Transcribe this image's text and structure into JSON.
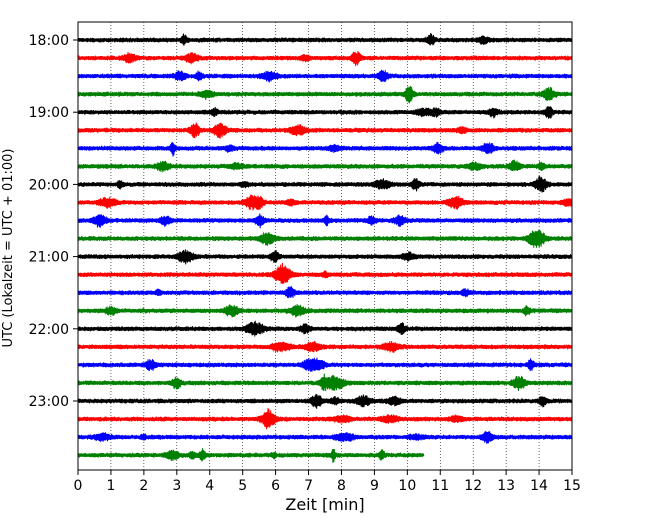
{
  "chart_data": {
    "type": "line",
    "title": "",
    "xlabel": "Zeit  [min]",
    "ylabel": "UTC (Lokalzeit = UTC + 01:00)",
    "xlim": [
      0,
      15
    ],
    "x_ticks": [
      "0",
      "1",
      "2",
      "3",
      "4",
      "5",
      "6",
      "7",
      "8",
      "9",
      "10",
      "11",
      "12",
      "13",
      "14",
      "15"
    ],
    "y_tick_labels": [
      "18:00",
      "19:00",
      "20:00",
      "21:00",
      "22:00",
      "23:00"
    ],
    "grid": "vertical dotted at each minute",
    "colors": [
      "#000000",
      "#ff0000",
      "#0000ff",
      "#008000"
    ],
    "row_minutes": 15,
    "series": [
      {
        "start": "18:00",
        "color": "#000000",
        "duration_min": 15
      },
      {
        "start": "18:15",
        "color": "#ff0000",
        "duration_min": 15
      },
      {
        "start": "18:30",
        "color": "#0000ff",
        "duration_min": 15
      },
      {
        "start": "18:45",
        "color": "#008000",
        "duration_min": 15
      },
      {
        "start": "19:00",
        "color": "#000000",
        "duration_min": 15
      },
      {
        "start": "19:15",
        "color": "#ff0000",
        "duration_min": 15
      },
      {
        "start": "19:30",
        "color": "#0000ff",
        "duration_min": 15
      },
      {
        "start": "19:45",
        "color": "#008000",
        "duration_min": 15
      },
      {
        "start": "20:00",
        "color": "#000000",
        "duration_min": 15
      },
      {
        "start": "20:15",
        "color": "#ff0000",
        "duration_min": 15
      },
      {
        "start": "20:30",
        "color": "#0000ff",
        "duration_min": 15
      },
      {
        "start": "20:45",
        "color": "#008000",
        "duration_min": 15
      },
      {
        "start": "21:00",
        "color": "#000000",
        "duration_min": 15
      },
      {
        "start": "21:15",
        "color": "#ff0000",
        "duration_min": 15
      },
      {
        "start": "21:30",
        "color": "#0000ff",
        "duration_min": 15
      },
      {
        "start": "21:45",
        "color": "#008000",
        "duration_min": 15
      },
      {
        "start": "22:00",
        "color": "#000000",
        "duration_min": 15
      },
      {
        "start": "22:15",
        "color": "#ff0000",
        "duration_min": 15
      },
      {
        "start": "22:30",
        "color": "#0000ff",
        "duration_min": 15
      },
      {
        "start": "22:45",
        "color": "#008000",
        "duration_min": 15
      },
      {
        "start": "23:00",
        "color": "#000000",
        "duration_min": 15
      },
      {
        "start": "23:15",
        "color": "#ff0000",
        "duration_min": 15
      },
      {
        "start": "23:30",
        "color": "#0000ff",
        "duration_min": 15
      },
      {
        "start": "23:45",
        "color": "#008000",
        "duration_min": 10.5
      }
    ]
  }
}
